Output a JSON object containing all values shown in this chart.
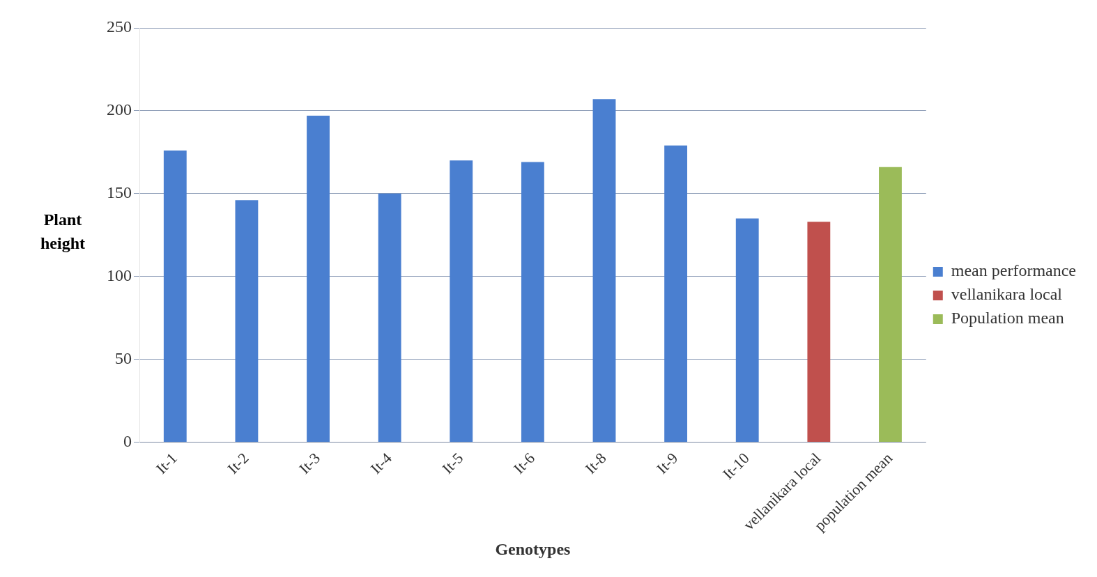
{
  "chart_data": {
    "type": "bar",
    "xlabel": "Genotypes",
    "ylabel": "Plant height",
    "categories": [
      "It-1",
      "It-2",
      "It-3",
      "It-4",
      "It-5",
      "It-6",
      "It-8",
      "It-9",
      "It-10",
      "vellanikara local",
      "population mean"
    ],
    "series": [
      {
        "name": "mean performance",
        "color": "#4a7fd0",
        "values": [
          176,
          146,
          197,
          150,
          170,
          169,
          207,
          179,
          135,
          null,
          null
        ]
      },
      {
        "name": "vellanikara local",
        "color": "#c0504d",
        "values": [
          null,
          null,
          null,
          null,
          null,
          null,
          null,
          null,
          null,
          133,
          null
        ]
      },
      {
        "name": "Population mean",
        "color": "#9bbb59",
        "values": [
          null,
          null,
          null,
          null,
          null,
          null,
          null,
          null,
          null,
          null,
          166
        ]
      }
    ],
    "ylim": [
      0,
      250
    ],
    "yticks": [
      0,
      50,
      100,
      150,
      200,
      250
    ],
    "grid": "y",
    "legend": "right"
  }
}
